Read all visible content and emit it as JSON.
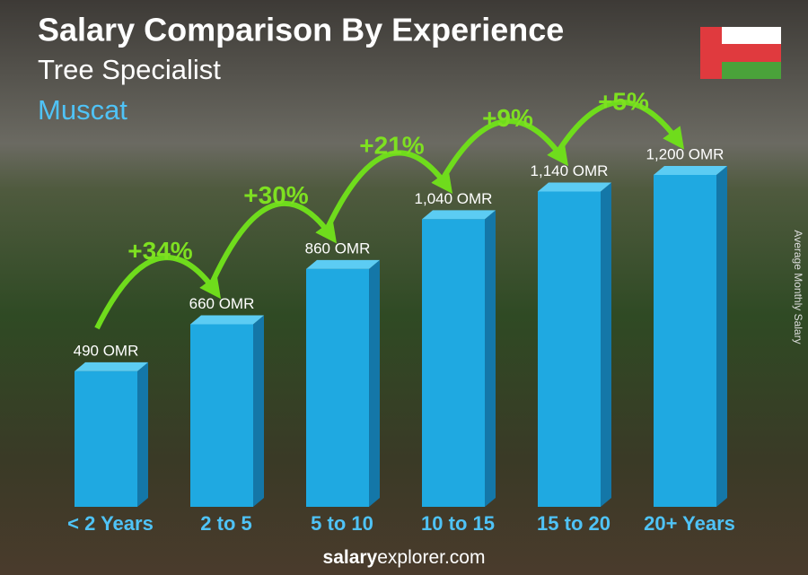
{
  "chart_data": {
    "type": "bar",
    "title": "Salary Comparison By Experience",
    "subtitle": "Tree Specialist",
    "location": "Muscat",
    "y_axis_label": "Average Monthly Salary",
    "categories": [
      "< 2 Years",
      "2 to 5",
      "5 to 10",
      "10 to 15",
      "15 to 20",
      "20+ Years"
    ],
    "values": [
      490,
      660,
      860,
      1040,
      1140,
      1200
    ],
    "value_labels": [
      "490 OMR",
      "660 OMR",
      "860 OMR",
      "1,040 OMR",
      "1,140 OMR",
      "1,200 OMR"
    ],
    "annotations": [
      "+34%",
      "+30%",
      "+21%",
      "+9%",
      "+5%"
    ],
    "color": "#1fa9e1",
    "footer": {
      "bold": "salary",
      "rest": "explorer.com"
    }
  }
}
